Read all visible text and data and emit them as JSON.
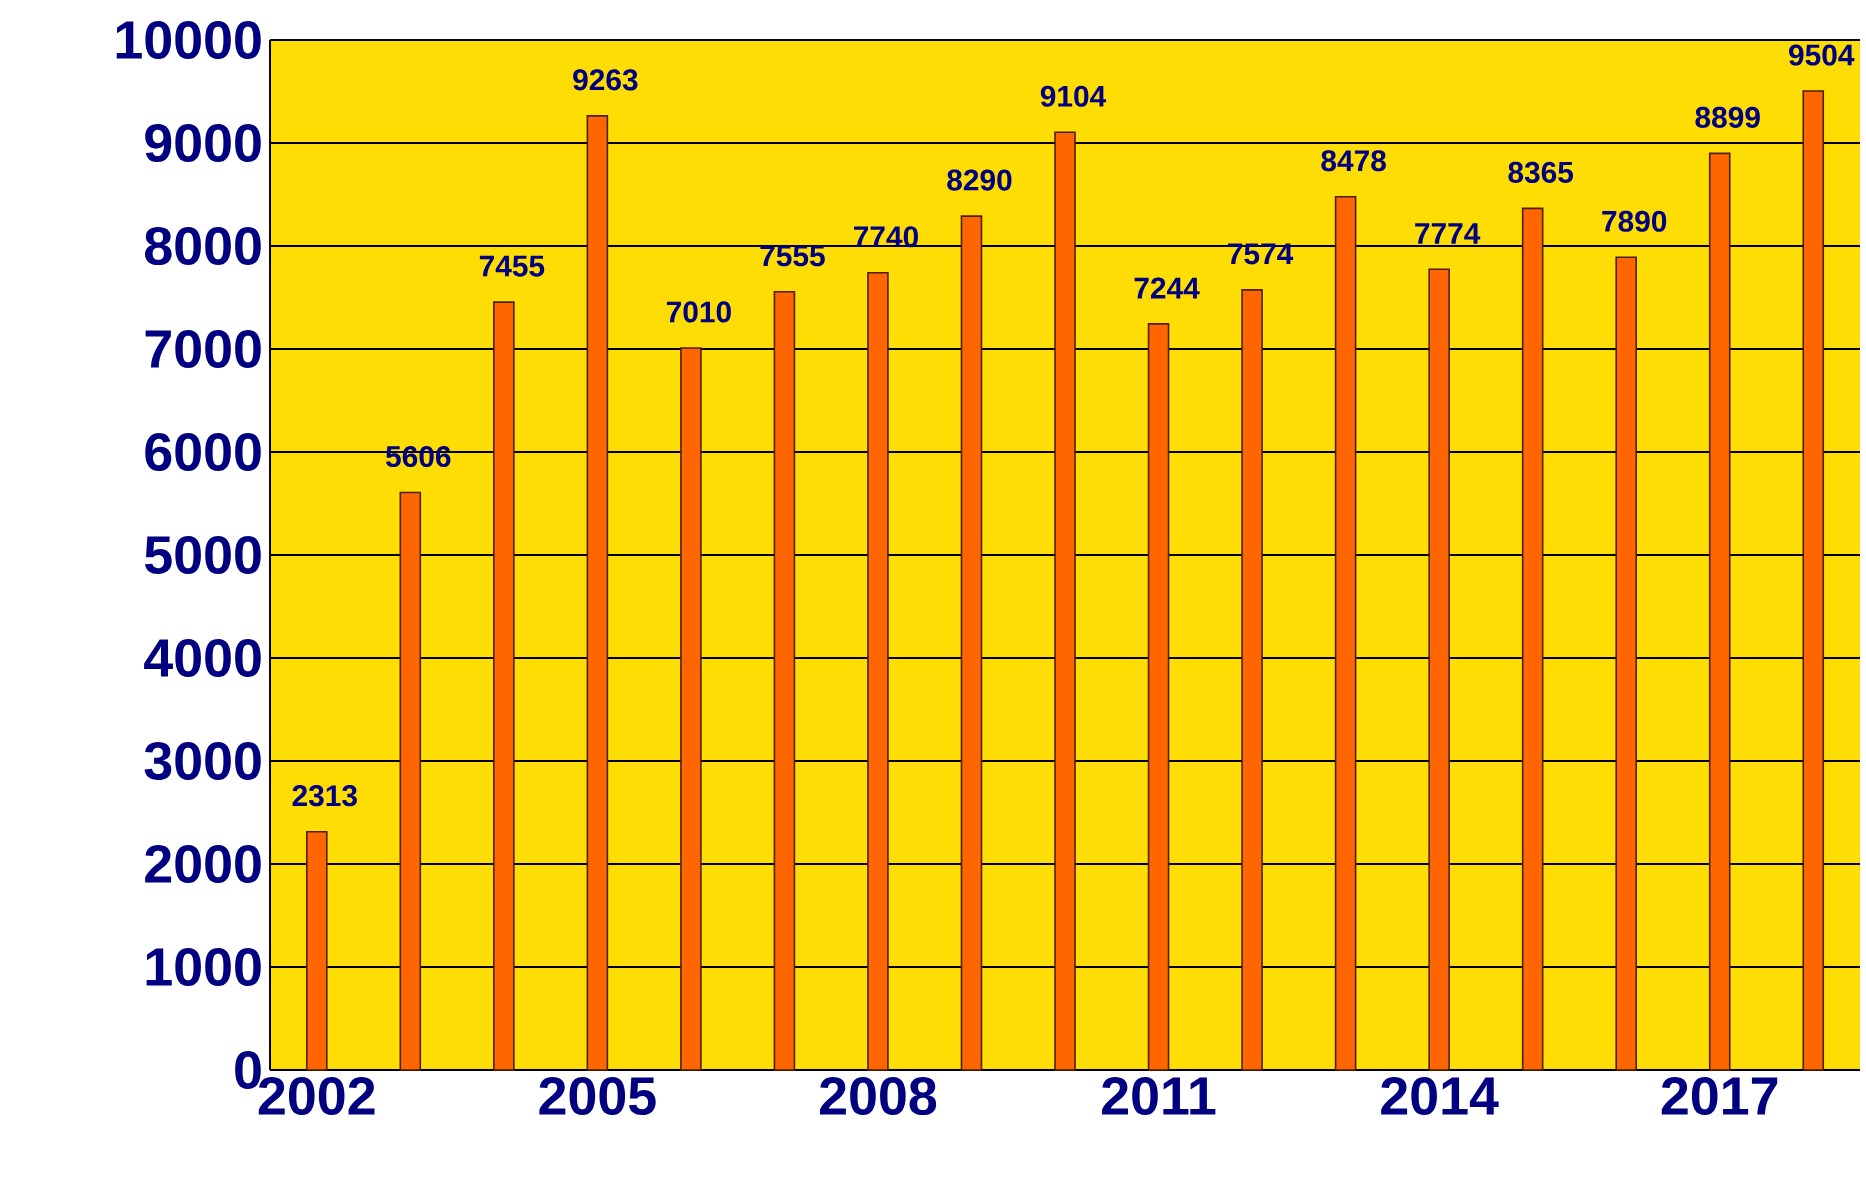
{
  "chart_data": {
    "type": "bar",
    "categories": [
      "2002",
      null,
      null,
      "2005",
      null,
      null,
      "2008",
      null,
      null,
      "2011",
      null,
      null,
      "2014",
      null,
      null,
      "2017",
      null
    ],
    "values": [
      2313,
      5606,
      7455,
      9263,
      7010,
      7555,
      7740,
      8290,
      9104,
      7244,
      7574,
      8478,
      7774,
      8365,
      7890,
      8899,
      9504
    ],
    "color": "#ff6600",
    "ylim": [
      0,
      10000
    ],
    "yticks": [
      0,
      1000,
      2000,
      3000,
      4000,
      5000,
      6000,
      7000,
      8000,
      9000,
      10000
    ],
    "grid": "y",
    "data_labels": true
  }
}
